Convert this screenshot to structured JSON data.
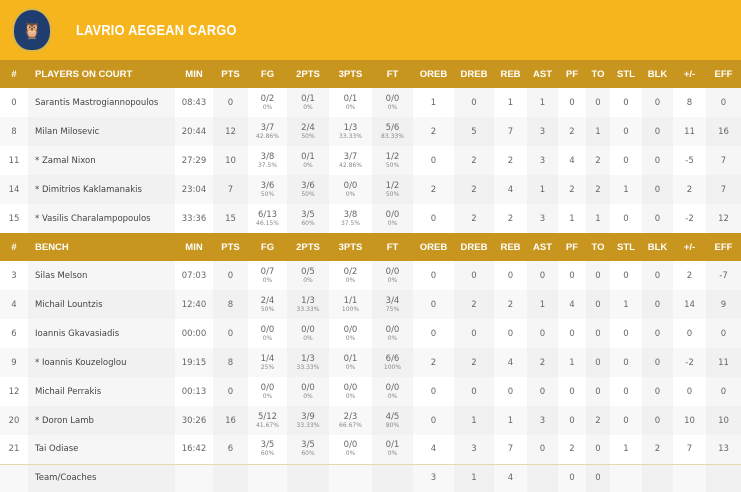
{
  "team": {
    "name": "LAVRIO AEGEAN CARGO",
    "logo": "Lavrio owl crest"
  },
  "colors": {
    "header": "#f6b51c",
    "table_header": "#c8961f"
  },
  "columns": [
    "#",
    "MIN",
    "PTS",
    "FG",
    "2PTS",
    "3PTS",
    "FT",
    "OREB",
    "DREB",
    "REB",
    "AST",
    "PF",
    "TO",
    "STL",
    "BLK",
    "+/-",
    "EFF"
  ],
  "on_court_label": "PLAYERS ON COURT",
  "bench_label": "BENCH",
  "on_court": [
    {
      "no": "0",
      "name": "Sarantis Mastrogiannopoulos",
      "min": "08:43",
      "pts": "0",
      "fg": [
        "0/2",
        "0%"
      ],
      "p2": [
        "0/1",
        "0%"
      ],
      "p3": [
        "0/1",
        "0%"
      ],
      "ft": [
        "0/0",
        "0%"
      ],
      "oreb": "1",
      "dreb": "0",
      "reb": "1",
      "ast": "1",
      "pf": "0",
      "to": "0",
      "stl": "0",
      "blk": "0",
      "pm": "8",
      "eff": "0"
    },
    {
      "no": "8",
      "name": "Milan Milosevic",
      "min": "20:44",
      "pts": "12",
      "fg": [
        "3/7",
        "42.86%"
      ],
      "p2": [
        "2/4",
        "50%"
      ],
      "p3": [
        "1/3",
        "33.33%"
      ],
      "ft": [
        "5/6",
        "83.33%"
      ],
      "oreb": "2",
      "dreb": "5",
      "reb": "7",
      "ast": "3",
      "pf": "2",
      "to": "1",
      "stl": "0",
      "blk": "0",
      "pm": "11",
      "eff": "16"
    },
    {
      "no": "11",
      "name": "* Zamal Nixon",
      "min": "27:29",
      "pts": "10",
      "fg": [
        "3/8",
        "37.5%"
      ],
      "p2": [
        "0/1",
        "0%"
      ],
      "p3": [
        "3/7",
        "42.86%"
      ],
      "ft": [
        "1/2",
        "50%"
      ],
      "oreb": "0",
      "dreb": "2",
      "reb": "2",
      "ast": "3",
      "pf": "4",
      "to": "2",
      "stl": "0",
      "blk": "0",
      "pm": "-5",
      "eff": "7"
    },
    {
      "no": "14",
      "name": "* Dimitrios Kaklamanakis",
      "min": "23:04",
      "pts": "7",
      "fg": [
        "3/6",
        "50%"
      ],
      "p2": [
        "3/6",
        "50%"
      ],
      "p3": [
        "0/0",
        "0%"
      ],
      "ft": [
        "1/2",
        "50%"
      ],
      "oreb": "2",
      "dreb": "2",
      "reb": "4",
      "ast": "1",
      "pf": "2",
      "to": "2",
      "stl": "1",
      "blk": "0",
      "pm": "2",
      "eff": "7"
    },
    {
      "no": "15",
      "name": "* Vasilis Charalampopoulos",
      "min": "33:36",
      "pts": "15",
      "fg": [
        "6/13",
        "46.15%"
      ],
      "p2": [
        "3/5",
        "60%"
      ],
      "p3": [
        "3/8",
        "37.5%"
      ],
      "ft": [
        "0/0",
        "0%"
      ],
      "oreb": "0",
      "dreb": "2",
      "reb": "2",
      "ast": "3",
      "pf": "1",
      "to": "1",
      "stl": "0",
      "blk": "0",
      "pm": "-2",
      "eff": "12"
    }
  ],
  "bench": [
    {
      "no": "3",
      "name": "Silas Melson",
      "min": "07:03",
      "pts": "0",
      "fg": [
        "0/7",
        "0%"
      ],
      "p2": [
        "0/5",
        "0%"
      ],
      "p3": [
        "0/2",
        "0%"
      ],
      "ft": [
        "0/0",
        "0%"
      ],
      "oreb": "0",
      "dreb": "0",
      "reb": "0",
      "ast": "0",
      "pf": "0",
      "to": "0",
      "stl": "0",
      "blk": "0",
      "pm": "2",
      "eff": "-7"
    },
    {
      "no": "4",
      "name": "Michail Lountzis",
      "min": "12:40",
      "pts": "8",
      "fg": [
        "2/4",
        "50%"
      ],
      "p2": [
        "1/3",
        "33.33%"
      ],
      "p3": [
        "1/1",
        "100%"
      ],
      "ft": [
        "3/4",
        "75%"
      ],
      "oreb": "0",
      "dreb": "2",
      "reb": "2",
      "ast": "1",
      "pf": "4",
      "to": "0",
      "stl": "1",
      "blk": "0",
      "pm": "14",
      "eff": "9"
    },
    {
      "no": "6",
      "name": "Ioannis Gkavasiadis",
      "min": "00:00",
      "pts": "0",
      "fg": [
        "0/0",
        "0%"
      ],
      "p2": [
        "0/0",
        "0%"
      ],
      "p3": [
        "0/0",
        "0%"
      ],
      "ft": [
        "0/0",
        "0%"
      ],
      "oreb": "0",
      "dreb": "0",
      "reb": "0",
      "ast": "0",
      "pf": "0",
      "to": "0",
      "stl": "0",
      "blk": "0",
      "pm": "0",
      "eff": "0"
    },
    {
      "no": "9",
      "name": "* Ioannis Kouzeloglou",
      "min": "19:15",
      "pts": "8",
      "fg": [
        "1/4",
        "25%"
      ],
      "p2": [
        "1/3",
        "33.33%"
      ],
      "p3": [
        "0/1",
        "0%"
      ],
      "ft": [
        "6/6",
        "100%"
      ],
      "oreb": "2",
      "dreb": "2",
      "reb": "4",
      "ast": "2",
      "pf": "1",
      "to": "0",
      "stl": "0",
      "blk": "0",
      "pm": "-2",
      "eff": "11"
    },
    {
      "no": "12",
      "name": "Michail Perrakis",
      "min": "00:13",
      "pts": "0",
      "fg": [
        "0/0",
        "0%"
      ],
      "p2": [
        "0/0",
        "0%"
      ],
      "p3": [
        "0/0",
        "0%"
      ],
      "ft": [
        "0/0",
        "0%"
      ],
      "oreb": "0",
      "dreb": "0",
      "reb": "0",
      "ast": "0",
      "pf": "0",
      "to": "0",
      "stl": "0",
      "blk": "0",
      "pm": "0",
      "eff": "0"
    },
    {
      "no": "20",
      "name": "* Doron Lamb",
      "min": "30:26",
      "pts": "16",
      "fg": [
        "5/12",
        "41.67%"
      ],
      "p2": [
        "3/9",
        "33.33%"
      ],
      "p3": [
        "2/3",
        "66.67%"
      ],
      "ft": [
        "4/5",
        "80%"
      ],
      "oreb": "0",
      "dreb": "1",
      "reb": "1",
      "ast": "3",
      "pf": "0",
      "to": "2",
      "stl": "0",
      "blk": "0",
      "pm": "10",
      "eff": "10"
    },
    {
      "no": "21",
      "name": "Tai Odiase",
      "min": "16:42",
      "pts": "6",
      "fg": [
        "3/5",
        "60%"
      ],
      "p2": [
        "3/5",
        "60%"
      ],
      "p3": [
        "0/0",
        "0%"
      ],
      "ft": [
        "0/1",
        "0%"
      ],
      "oreb": "4",
      "dreb": "3",
      "reb": "7",
      "ast": "0",
      "pf": "2",
      "to": "0",
      "stl": "1",
      "blk": "2",
      "pm": "7",
      "eff": "13"
    }
  ],
  "team_row": {
    "name": "Team/Coaches",
    "no": "",
    "min": "",
    "pts": "",
    "fg": [
      "",
      ""
    ],
    "p2": [
      "",
      ""
    ],
    "p3": [
      "",
      ""
    ],
    "ft": [
      "",
      ""
    ],
    "oreb": "3",
    "dreb": "1",
    "reb": "4",
    "ast": "",
    "pf": "0",
    "to": "0",
    "stl": "",
    "blk": "",
    "pm": "",
    "eff": ""
  }
}
